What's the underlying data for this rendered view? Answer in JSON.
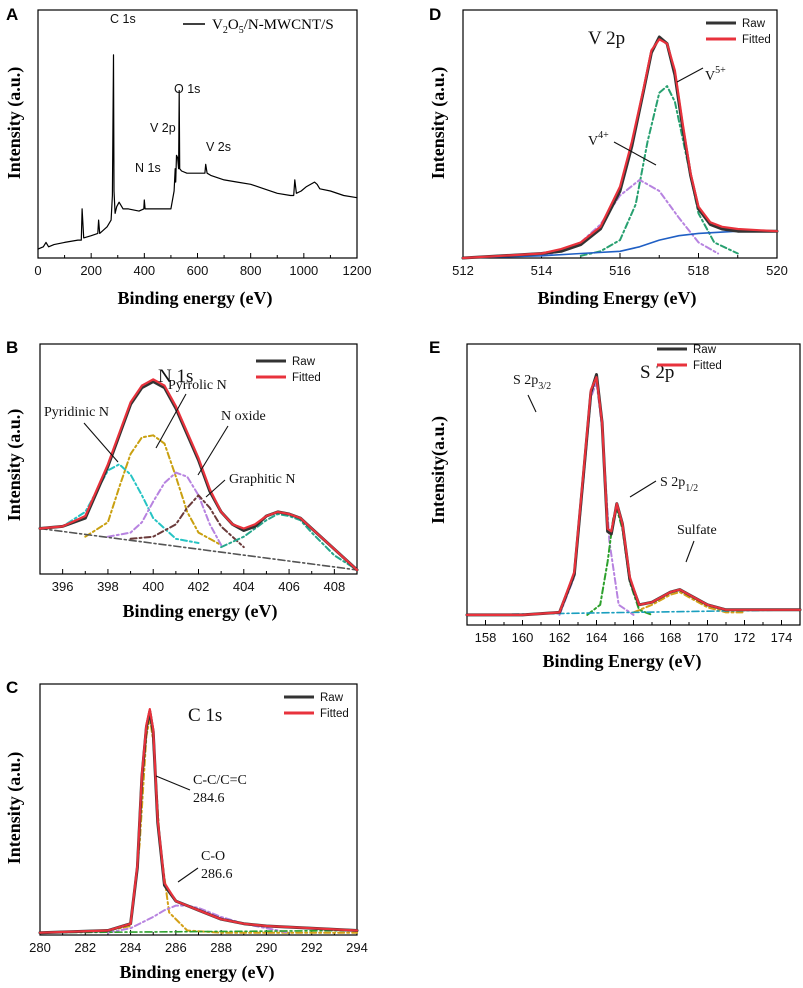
{
  "figure": {
    "panels": {
      "A": {
        "letter": "A"
      },
      "B": {
        "letter": "B"
      },
      "C": {
        "letter": "C"
      },
      "D": {
        "letter": "D"
      },
      "E": {
        "letter": "E"
      }
    }
  },
  "chart_data": [
    {
      "id": "A",
      "type": "line",
      "title": "",
      "xlabel": "Binding energy (eV)",
      "ylabel": "Intensity (a.u.)",
      "xlim": [
        0,
        1200
      ],
      "ylim": [
        0,
        100
      ],
      "xticks": [
        0,
        200,
        400,
        600,
        800,
        1000,
        1200
      ],
      "legend": [
        "V2O5/N-MWCNT/S"
      ],
      "legend_parts": {
        "a": "V",
        "sub1": "2",
        "b": "O",
        "sub2": "5",
        "c": "/N-MWCNT/S"
      },
      "peak_labels": [
        {
          "text": "C 1s",
          "x": 285
        },
        {
          "text": "O 1s",
          "x": 531
        },
        {
          "text": "V 2p",
          "x": 517
        },
        {
          "text": "N 1s",
          "x": 400
        },
        {
          "text": "V 2s",
          "x": 630
        }
      ],
      "series": [
        {
          "name": "V2O5/N-MWCNT/S",
          "color": "#000000",
          "x": [
            0,
            20,
            30,
            40,
            60,
            100,
            150,
            163,
            166,
            172,
            200,
            225,
            228,
            232,
            260,
            275,
            280,
            284,
            286,
            290,
            296,
            305,
            320,
            340,
            380,
            398,
            400,
            403,
            420,
            460,
            500,
            512,
            516,
            518,
            521,
            525,
            529,
            531,
            533,
            540,
            560,
            600,
            628,
            631,
            636,
            650,
            700,
            750,
            800,
            850,
            900,
            950,
            962,
            966,
            972,
            990,
            1010,
            1040,
            1050,
            1060,
            1100,
            1150,
            1200
          ],
          "y": [
            4,
            5,
            7,
            5,
            6,
            7,
            8,
            8,
            22,
            9,
            10,
            11,
            17,
            11,
            14,
            17,
            28,
            91,
            30,
            20,
            23,
            25,
            22,
            22,
            21,
            22,
            26,
            22,
            22,
            22,
            22,
            30,
            40,
            34,
            46,
            45,
            40,
            75,
            40,
            39,
            38,
            38,
            38,
            42,
            38,
            37,
            35,
            34,
            33,
            31,
            29,
            28,
            28,
            35,
            29,
            30,
            32,
            34,
            33,
            31,
            30,
            28,
            27
          ]
        }
      ]
    },
    {
      "id": "B",
      "type": "line",
      "title": "N 1s",
      "xlabel": "Binding energy (eV)",
      "ylabel": "Intensity (a.u.)",
      "xlim": [
        395,
        409
      ],
      "ylim": [
        0,
        100
      ],
      "xticks": [
        396,
        398,
        400,
        402,
        404,
        406,
        408
      ],
      "legend": [
        "Raw",
        "Fitted"
      ],
      "annotations": [
        "Pyridinic N",
        "Pyrrolic N",
        "N oxide",
        "Graphitic N"
      ],
      "series": [
        {
          "name": "Raw",
          "color": "#333333",
          "x": [
            395,
            396,
            397,
            398,
            399,
            399.5,
            400,
            400.5,
            401,
            402,
            402.5,
            403,
            403.5,
            404,
            404.5,
            405,
            405.5,
            406,
            406.5,
            407,
            408,
            409
          ],
          "y": [
            22,
            23,
            27,
            52,
            82,
            90,
            93,
            90,
            80,
            55,
            40,
            30,
            24,
            21,
            23,
            28,
            30,
            29,
            27,
            22,
            12,
            2
          ]
        },
        {
          "name": "Fitted",
          "color": "#e8323c",
          "x": [
            395,
            396,
            397,
            398,
            399,
            399.5,
            400,
            400.5,
            401,
            402,
            402.5,
            403,
            403.5,
            404,
            404.5,
            405,
            405.5,
            406,
            406.5,
            407,
            408,
            409
          ],
          "y": [
            22,
            23,
            28,
            53,
            83,
            91,
            94,
            91,
            81,
            56,
            41,
            30,
            24,
            22,
            24,
            28,
            30,
            29,
            27,
            22,
            12,
            2
          ]
        },
        {
          "name": "Pyridinic N",
          "color": "#26c4c4",
          "x": [
            395,
            396,
            397,
            397.5,
            398,
            398.5,
            399,
            399.5,
            400,
            401,
            402
          ],
          "y": [
            22,
            23,
            30,
            40,
            50,
            53,
            48,
            38,
            27,
            17,
            15
          ]
        },
        {
          "name": "Pyrrolic N",
          "color": "#c9a010",
          "x": [
            397,
            398,
            398.5,
            399,
            399.5,
            400,
            400.5,
            401,
            401.5,
            402,
            403
          ],
          "y": [
            18,
            25,
            42,
            58,
            66,
            67,
            63,
            47,
            30,
            20,
            14
          ]
        },
        {
          "name": "N oxide",
          "color": "#b783e0",
          "x": [
            398,
            399,
            399.5,
            400,
            400.5,
            401,
            401.5,
            402,
            402.5,
            403
          ],
          "y": [
            18,
            20,
            25,
            35,
            44,
            49,
            47,
            38,
            24,
            14
          ]
        },
        {
          "name": "Graphitic N",
          "color": "#6b3b3b",
          "x": [
            399,
            400,
            401,
            401.5,
            402,
            402.5,
            403,
            404
          ],
          "y": [
            17,
            18,
            24,
            32,
            38,
            32,
            23,
            13
          ]
        },
        {
          "name": "Satellite",
          "color": "#26a68c",
          "x": [
            403,
            404,
            405,
            405.5,
            406,
            406.5,
            407,
            408,
            409
          ],
          "y": [
            13,
            18,
            26,
            29,
            28,
            26,
            20,
            9,
            2
          ]
        },
        {
          "name": "Baseline",
          "color": "#555555",
          "x": [
            395,
            409
          ],
          "y": [
            22,
            2
          ]
        }
      ]
    },
    {
      "id": "C",
      "type": "line",
      "title": "C 1s",
      "xlabel": "Binding energy (eV)",
      "ylabel": "Intensity (a.u.)",
      "xlim": [
        280,
        294
      ],
      "ylim": [
        0,
        100
      ],
      "xticks": [
        280,
        282,
        284,
        286,
        288,
        290,
        292,
        294
      ],
      "legend": [
        "Raw",
        "Fitted"
      ],
      "annotations": [
        {
          "label": "C-C/C=C",
          "value": "284.6"
        },
        {
          "label": "C-O",
          "value": "286.6"
        }
      ],
      "series": [
        {
          "name": "Raw",
          "color": "#333333",
          "x": [
            280,
            283,
            284,
            284.3,
            284.5,
            284.7,
            284.85,
            285,
            285.2,
            285.5,
            286,
            286.5,
            287,
            288,
            289,
            290,
            292,
            294
          ],
          "y": [
            1,
            2,
            5,
            30,
            70,
            92,
            99,
            90,
            50,
            22,
            15,
            13,
            11,
            7,
            5,
            4,
            3,
            2
          ]
        },
        {
          "name": "Fitted",
          "color": "#e8323c",
          "x": [
            280,
            283,
            284,
            284.3,
            284.5,
            284.7,
            284.85,
            285,
            285.2,
            285.5,
            286,
            286.5,
            287,
            288,
            289,
            290,
            292,
            294
          ],
          "y": [
            1,
            2,
            5,
            31,
            71,
            93,
            100,
            91,
            51,
            23,
            15,
            13,
            11,
            7,
            5,
            4,
            3,
            2
          ]
        },
        {
          "name": "C-C/C=C",
          "color": "#d4a017",
          "x": [
            280,
            283,
            284,
            284.4,
            284.7,
            284.85,
            285,
            285.3,
            285.7,
            286.5,
            288,
            294
          ],
          "y": [
            1,
            2,
            4,
            40,
            88,
            96,
            86,
            40,
            10,
            2,
            1,
            1
          ]
        },
        {
          "name": "C-O",
          "color": "#b783e0",
          "x": [
            283,
            284,
            285,
            285.5,
            286,
            286.5,
            287,
            288,
            289,
            290,
            291
          ],
          "y": [
            1,
            3,
            8,
            11,
            13,
            13,
            12,
            8,
            5,
            3,
            1
          ]
        },
        {
          "name": "Baseline",
          "color": "#2ca02c",
          "x": [
            280,
            294
          ],
          "y": [
            1,
            2
          ]
        }
      ]
    },
    {
      "id": "D",
      "type": "line",
      "title": "V 2p",
      "xlabel": "Binding Energy (eV)",
      "ylabel": "Intensity (a.u.)",
      "xlim": [
        512,
        520
      ],
      "ylim": [
        0,
        100
      ],
      "xticks": [
        512,
        514,
        516,
        518,
        520
      ],
      "legend": [
        "Raw",
        "Fitted"
      ],
      "annotations": [
        {
          "base": "V",
          "sup": "5+"
        },
        {
          "base": "V",
          "sup": "4+"
        }
      ],
      "series": [
        {
          "name": "Raw",
          "color": "#333333",
          "x": [
            512,
            513,
            514,
            514.5,
            515,
            515.5,
            516,
            516.3,
            516.6,
            516.8,
            517,
            517.2,
            517.4,
            517.6,
            517.8,
            518,
            518.3,
            518.6,
            519,
            520
          ],
          "y": [
            0,
            1,
            2,
            3,
            6,
            13,
            30,
            50,
            75,
            92,
            99,
            96,
            82,
            58,
            37,
            22,
            15,
            13,
            12,
            12
          ]
        },
        {
          "name": "Fitted",
          "color": "#e8323c",
          "x": [
            512,
            513,
            514,
            514.5,
            515,
            515.5,
            516,
            516.3,
            516.6,
            516.8,
            517,
            517.2,
            517.4,
            517.6,
            517.8,
            518,
            518.3,
            518.6,
            519,
            520
          ],
          "y": [
            0,
            1,
            2,
            4,
            7,
            14,
            32,
            52,
            76,
            93,
            98,
            96,
            84,
            60,
            38,
            23,
            16,
            14,
            13,
            12
          ]
        },
        {
          "name": "V5+",
          "color": "#28a070",
          "x": [
            515,
            515.5,
            516,
            516.4,
            516.7,
            517,
            517.2,
            517.4,
            517.7,
            518,
            518.4,
            519
          ],
          "y": [
            1,
            3,
            8,
            24,
            52,
            74,
            77,
            70,
            45,
            20,
            7,
            2
          ]
        },
        {
          "name": "V4+",
          "color": "#b783e0",
          "x": [
            514,
            514.5,
            515,
            515.5,
            516,
            516.5,
            517,
            517.5,
            518,
            518.5
          ],
          "y": [
            1,
            3,
            7,
            15,
            28,
            35,
            30,
            18,
            7,
            2
          ]
        },
        {
          "name": "Background",
          "color": "#1f5fc4",
          "x": [
            512,
            514,
            515,
            516,
            516.5,
            517,
            517.5,
            518,
            519,
            520
          ],
          "y": [
            0,
            1,
            2,
            3,
            5,
            8,
            10,
            11,
            12,
            12
          ]
        }
      ]
    },
    {
      "id": "E",
      "type": "line",
      "title": "S 2p",
      "xlabel": "Binding Energy (eV)",
      "ylabel": "Intensity(a.u.)",
      "xlim": [
        157,
        175
      ],
      "ylim": [
        0,
        100
      ],
      "xticks": [
        158,
        160,
        162,
        164,
        166,
        168,
        170,
        172,
        174
      ],
      "legend": [
        "Raw",
        "Fitted"
      ],
      "annotations": [
        {
          "base": "S 2p",
          "sub": "3/2"
        },
        {
          "base": "S 2p",
          "sub": "1/2"
        },
        {
          "base": "Sulfate",
          "sub": ""
        }
      ],
      "series": [
        {
          "name": "Raw",
          "color": "#333333",
          "x": [
            157,
            160,
            162,
            162.8,
            163.3,
            163.7,
            164,
            164.3,
            164.6,
            164.8,
            165.1,
            165.4,
            165.8,
            166.3,
            167,
            168,
            168.5,
            169,
            170,
            171,
            172,
            175
          ],
          "y": [
            4,
            4,
            5,
            20,
            60,
            92,
            99,
            80,
            37,
            36,
            48,
            40,
            18,
            8,
            9,
            13,
            14,
            12,
            8,
            6,
            6,
            6
          ]
        },
        {
          "name": "Fitted",
          "color": "#e8323c",
          "x": [
            157,
            160,
            162,
            162.8,
            163.3,
            163.7,
            164,
            164.3,
            164.6,
            164.8,
            165.1,
            165.4,
            165.8,
            166.3,
            167,
            168,
            168.5,
            169,
            170,
            171,
            172,
            175
          ],
          "y": [
            4,
            4,
            5,
            21,
            61,
            93,
            98,
            80,
            38,
            37,
            48,
            40,
            19,
            8,
            9,
            13,
            14,
            12,
            8,
            6,
            6,
            6
          ]
        },
        {
          "name": "S 2p3/2",
          "color": "#b783e0",
          "x": [
            162,
            162.8,
            163.3,
            163.7,
            164,
            164.3,
            164.7,
            165.2,
            166
          ],
          "y": [
            4,
            19,
            58,
            90,
            96,
            78,
            33,
            8,
            4
          ]
        },
        {
          "name": "S 2p1/2",
          "color": "#2ca02c",
          "x": [
            163.5,
            164.2,
            164.6,
            164.9,
            165.1,
            165.4,
            165.8,
            166.3,
            167
          ],
          "y": [
            4,
            8,
            25,
            42,
            46,
            38,
            17,
            6,
            4
          ]
        },
        {
          "name": "Sulfate",
          "color": "#d4a017",
          "x": [
            166,
            167,
            168,
            168.5,
            169,
            170,
            171,
            172
          ],
          "y": [
            5,
            8,
            12,
            13,
            11,
            7,
            5,
            5
          ]
        },
        {
          "name": "Baseline",
          "color": "#1a9fbf",
          "x": [
            157,
            175
          ],
          "y": [
            4,
            6
          ]
        }
      ]
    }
  ]
}
